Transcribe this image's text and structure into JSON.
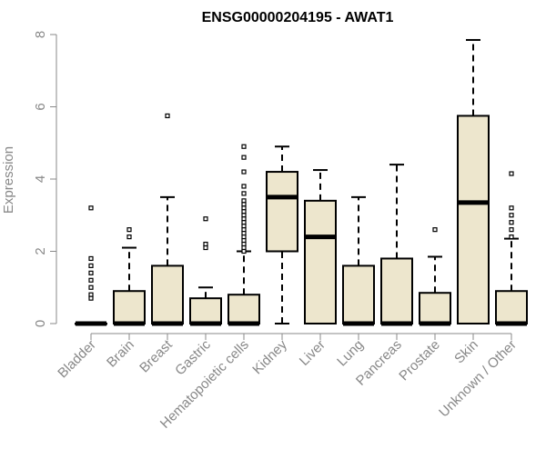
{
  "chart_data": {
    "type": "box",
    "title": "ENSG00000204195 - AWAT1",
    "xlabel": "",
    "ylabel": "Expression",
    "ylim": [
      0,
      8
    ],
    "yticks": [
      0,
      2,
      4,
      6,
      8
    ],
    "grid": false,
    "legend": "none",
    "colors": {
      "box_fill": "#ede6cd",
      "stroke": "#000000",
      "axis": "#888888"
    },
    "categories": [
      "Bladder",
      "Brain",
      "Breast",
      "Gastric",
      "Hematopoietic cells",
      "Kidney",
      "Liver",
      "Lung",
      "Pancreas",
      "Prostate",
      "Skin",
      "Unknown / Other"
    ],
    "boxes": [
      {
        "q1": 0,
        "median": 0,
        "q3": 0,
        "whisker_low": 0,
        "whisker_high": 0,
        "outliers": [
          3.2,
          1.8,
          1.6,
          1.4,
          1.2,
          1.0,
          0.8,
          0.7
        ]
      },
      {
        "q1": 0,
        "median": 0,
        "q3": 0.9,
        "whisker_low": 0,
        "whisker_high": 2.1,
        "outliers": [
          2.4,
          2.6
        ]
      },
      {
        "q1": 0,
        "median": 0,
        "q3": 1.6,
        "whisker_low": 0,
        "whisker_high": 3.5,
        "outliers": [
          5.75
        ]
      },
      {
        "q1": 0,
        "median": 0,
        "q3": 0.7,
        "whisker_low": 0,
        "whisker_high": 1.0,
        "outliers": [
          2.9,
          2.2,
          2.1
        ]
      },
      {
        "q1": 0,
        "median": 0,
        "q3": 0.8,
        "whisker_low": 0,
        "whisker_high": 2.0,
        "outliers": [
          4.9,
          4.6,
          4.2,
          3.8,
          3.6,
          3.4,
          3.3,
          3.2,
          3.1,
          3.0,
          2.9,
          2.8,
          2.7,
          2.6,
          2.5,
          2.4,
          2.3,
          2.2,
          2.1,
          2.0
        ]
      },
      {
        "q1": 2.0,
        "median": 3.5,
        "q3": 4.2,
        "whisker_low": 0,
        "whisker_high": 4.9,
        "outliers": []
      },
      {
        "q1": 0,
        "median": 2.4,
        "q3": 3.4,
        "whisker_low": 0,
        "whisker_high": 4.25,
        "outliers": []
      },
      {
        "q1": 0,
        "median": 0,
        "q3": 1.6,
        "whisker_low": 0,
        "whisker_high": 3.5,
        "outliers": []
      },
      {
        "q1": 0,
        "median": 0,
        "q3": 1.8,
        "whisker_low": 0,
        "whisker_high": 4.4,
        "outliers": []
      },
      {
        "q1": 0,
        "median": 0,
        "q3": 0.85,
        "whisker_low": 0,
        "whisker_high": 1.85,
        "outliers": [
          2.6
        ]
      },
      {
        "q1": 0,
        "median": 3.35,
        "q3": 5.75,
        "whisker_low": 0,
        "whisker_high": 7.85,
        "outliers": []
      },
      {
        "q1": 0,
        "median": 0,
        "q3": 0.9,
        "whisker_low": 0,
        "whisker_high": 2.35,
        "outliers": [
          4.15,
          3.2,
          3.0,
          2.8,
          2.6,
          2.4
        ]
      }
    ]
  }
}
